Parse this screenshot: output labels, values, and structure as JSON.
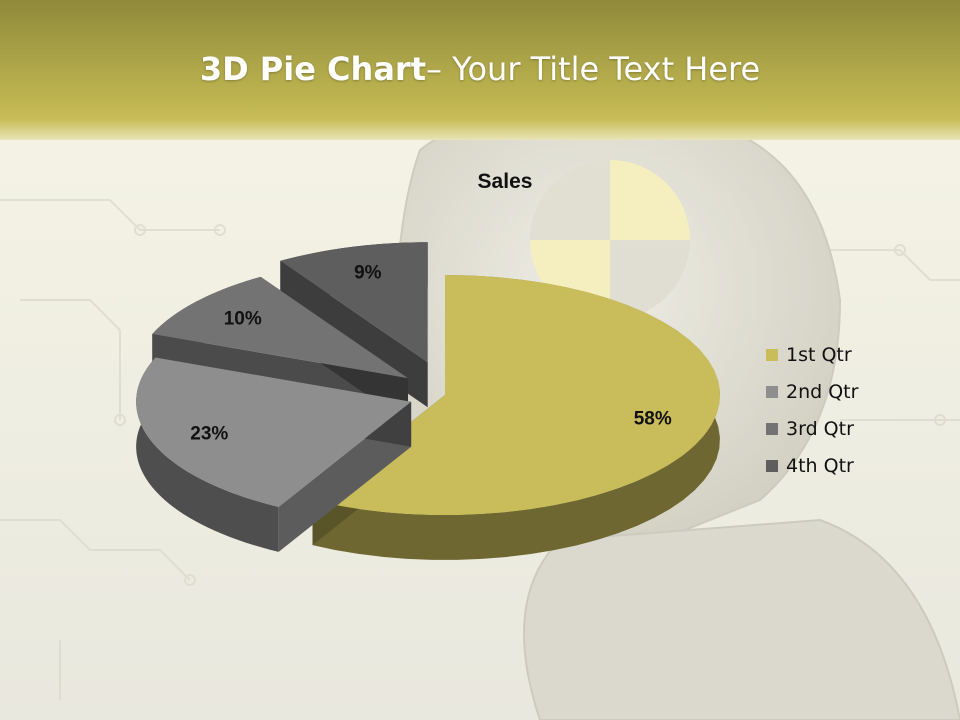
{
  "slide": {
    "title_bold": "3D Pie Chart",
    "title_rest": "– Your Title Text Here"
  },
  "colors": {
    "header_top": "#8f8a3a",
    "header_bottom": "#c7bc55",
    "background": "#efeee4"
  },
  "chart_data": {
    "type": "pie",
    "title": "Sales",
    "categories": [
      "1st Qtr",
      "2nd Qtr",
      "3rd Qtr",
      "4th Qtr"
    ],
    "values": [
      58,
      23,
      10,
      9
    ],
    "labels": [
      "58%",
      "23%",
      "10%",
      "9%"
    ],
    "colors": [
      "#c9bc5a",
      "#8e8e8e",
      "#737373",
      "#5e5e5e"
    ],
    "exploded": true,
    "three_d": true,
    "legend_position": "right"
  }
}
